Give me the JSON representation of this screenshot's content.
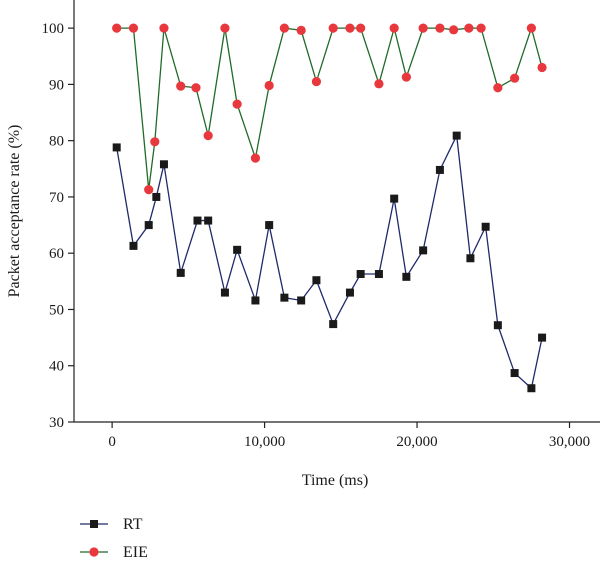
{
  "chart_data": {
    "type": "line",
    "xlabel": "Time (ms)",
    "ylabel": "Packet acceptance rate (%)",
    "xlim": [
      -2500,
      32000
    ],
    "ylim": [
      30,
      105
    ],
    "xticks": [
      0,
      10000,
      20000,
      30000
    ],
    "xtick_labels": [
      "0",
      "10,000",
      "20,000",
      "30,000"
    ],
    "yticks": [
      30,
      40,
      50,
      60,
      70,
      80,
      90,
      100
    ],
    "ytick_labels": [
      "30",
      "40",
      "50",
      "60",
      "70",
      "80",
      "90",
      "100"
    ],
    "grid": false,
    "legend_position": "bottom-left",
    "series": [
      {
        "name": "RT",
        "color": "#1f2a6b",
        "marker": "square",
        "marker_color": "#1a1a1a",
        "x": [
          300,
          1400,
          2400,
          2900,
          3400,
          4500,
          5600,
          6300,
          7400,
          8200,
          9400,
          10300,
          11300,
          12400,
          13400,
          14500,
          15600,
          16300,
          17500,
          18500,
          19300,
          20400,
          21500,
          22600,
          23500,
          24500,
          25300,
          26400,
          27500,
          28200
        ],
        "y": [
          78.8,
          61.3,
          65,
          70,
          75.8,
          56.5,
          65.8,
          65.8,
          53,
          60.6,
          51.6,
          65,
          52.1,
          51.6,
          55.2,
          47.4,
          53,
          56.3,
          56.3,
          69.7,
          55.8,
          60.5,
          74.8,
          80.9,
          59.1,
          64.7,
          47.2,
          38.7,
          36,
          45
        ]
      },
      {
        "name": "EIE",
        "color": "#1f6b2a",
        "marker": "circle",
        "marker_color": "#e8383d",
        "x": [
          300,
          1400,
          2400,
          2800,
          3400,
          4500,
          5500,
          6300,
          7400,
          8200,
          9400,
          10300,
          11300,
          12400,
          13400,
          14500,
          15600,
          16300,
          17500,
          18500,
          19300,
          20400,
          21500,
          22400,
          23400,
          24200,
          25300,
          26400,
          27500,
          28200
        ],
        "y": [
          100,
          100,
          71.3,
          79.8,
          100,
          89.7,
          89.4,
          80.9,
          100,
          86.5,
          76.9,
          89.8,
          100,
          99.6,
          90.5,
          100,
          100,
          100,
          90.1,
          100,
          91.3,
          100,
          100,
          99.7,
          100,
          100,
          89.4,
          91.1,
          100,
          93
        ]
      }
    ]
  }
}
